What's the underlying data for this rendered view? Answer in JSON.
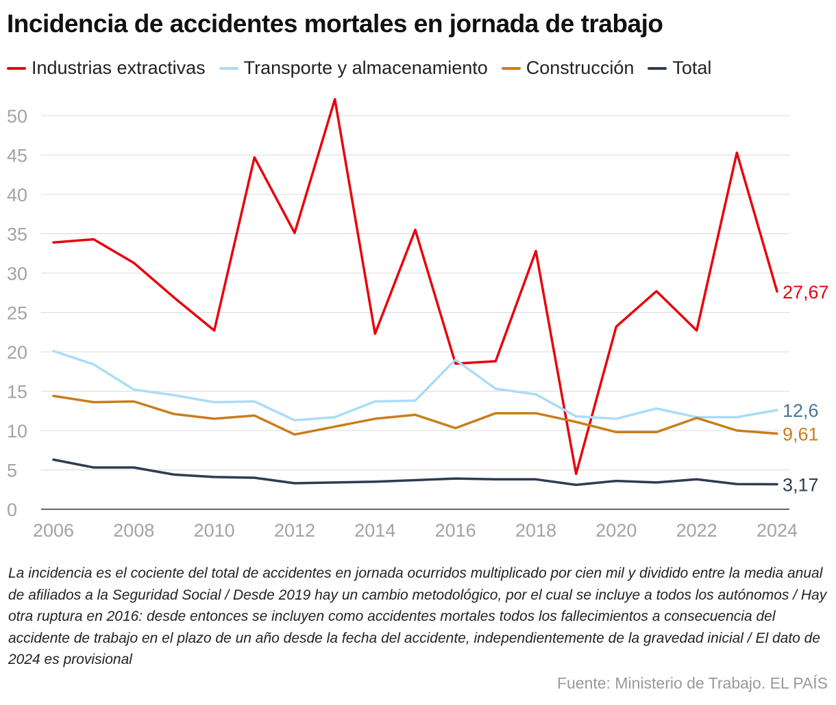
{
  "header": {
    "title": "Incidencia de accidentes mortales en jornada de trabajo"
  },
  "footer": {
    "note": "La incidencia es el cociente del total de accidentes en jornada ocurridos multiplicado por cien mil y dividido entre la media anual de afiliados a la Seguridad Social / Desde 2019 hay un cambio metodológico, por el cual se incluye a todos los autónomos / Hay otra ruptura en 2016: desde entonces se incluyen como accidentes mortales todos los fallecimientos a consecuencia del accidente de trabajo en el plazo de un año desde la fecha del accidente, independientemente de la gravedad inicial / El dato de 2024 es provisional",
    "source": "Fuente: Ministerio de Trabajo. EL PAÍS"
  },
  "chart_data": {
    "type": "line",
    "title": "Incidencia de accidentes mortales en jornada de trabajo",
    "xlabel": "",
    "ylabel": "",
    "x": [
      2006,
      2007,
      2008,
      2009,
      2010,
      2011,
      2012,
      2013,
      2014,
      2015,
      2016,
      2017,
      2018,
      2019,
      2020,
      2021,
      2022,
      2023,
      2024
    ],
    "xticks": [
      "2006",
      "2008",
      "2010",
      "2012",
      "2014",
      "2016",
      "2018",
      "2020",
      "2022",
      "2024"
    ],
    "yticks": [
      "0",
      "5",
      "10",
      "15",
      "20",
      "25",
      "30",
      "35",
      "40",
      "45",
      "50"
    ],
    "ylim": [
      0,
      52
    ],
    "grid": true,
    "legend_position": "top",
    "series": [
      {
        "name": "Industrias extractivas",
        "color": "#e8000b",
        "end_label": "27,67",
        "values": [
          33.9,
          34.3,
          31.3,
          26.9,
          22.7,
          44.7,
          35.1,
          52.1,
          22.3,
          35.5,
          18.5,
          18.8,
          32.8,
          4.5,
          23.2,
          27.7,
          22.7,
          45.3,
          27.67
        ]
      },
      {
        "name": "Transporte y almacenamiento",
        "color": "#aadcf7",
        "end_label": "12,6",
        "label_color": "#4a7590",
        "values": [
          20.1,
          18.4,
          15.2,
          14.5,
          13.6,
          13.7,
          11.3,
          11.7,
          13.7,
          13.8,
          19.0,
          15.3,
          14.6,
          11.8,
          11.5,
          12.8,
          11.7,
          11.7,
          12.6
        ]
      },
      {
        "name": "Construcción",
        "color": "#c97d1c",
        "end_label": "9,61",
        "values": [
          14.4,
          13.6,
          13.7,
          12.1,
          11.5,
          11.9,
          9.5,
          10.5,
          11.5,
          12.0,
          10.3,
          12.2,
          12.2,
          11.1,
          9.8,
          9.8,
          11.6,
          10.0,
          9.61
        ]
      },
      {
        "name": "Total",
        "color": "#2d3c52",
        "end_label": "3,17",
        "values": [
          6.3,
          5.3,
          5.3,
          4.4,
          4.1,
          4.0,
          3.3,
          3.4,
          3.5,
          3.7,
          3.9,
          3.8,
          3.8,
          3.1,
          3.6,
          3.4,
          3.8,
          3.2,
          3.17
        ]
      }
    ]
  }
}
